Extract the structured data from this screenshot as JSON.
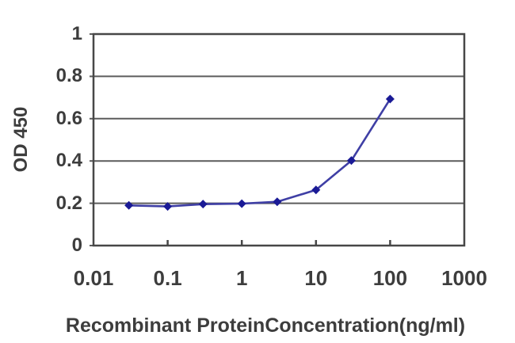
{
  "chart_data": {
    "type": "line",
    "title": "",
    "xlabel": "Recombinant ProteinConcentration(ng/ml)",
    "ylabel": "OD 450",
    "x_scale": "log",
    "y_scale": "linear",
    "xlim": [
      0.01,
      1000
    ],
    "ylim": [
      0,
      1
    ],
    "x_ticks": [
      0.01,
      0.1,
      1,
      10,
      100,
      1000
    ],
    "x_tick_labels": [
      "0.01",
      "0.1",
      "1",
      "10",
      "100",
      "1000"
    ],
    "y_ticks": [
      0,
      0.2,
      0.4,
      0.6,
      0.8,
      1
    ],
    "y_tick_labels": [
      "0",
      "0.2",
      "0.4",
      "0.6",
      "0.8",
      "1"
    ],
    "grid": "horizontal",
    "legend": "none",
    "series": [
      {
        "name": "OD 450",
        "marker": "diamond",
        "x": [
          0.03,
          0.1,
          0.3,
          1,
          3,
          10,
          30,
          100
        ],
        "y": [
          0.19,
          0.185,
          0.196,
          0.198,
          0.207,
          0.263,
          0.402,
          0.693
        ]
      }
    ],
    "colors": {
      "line": "#3f3fa5",
      "marker": "#1a1a96",
      "grid": "#5c5c5c",
      "border": "#474747",
      "text": "#3d3d3d",
      "background": "#ffffff"
    }
  }
}
